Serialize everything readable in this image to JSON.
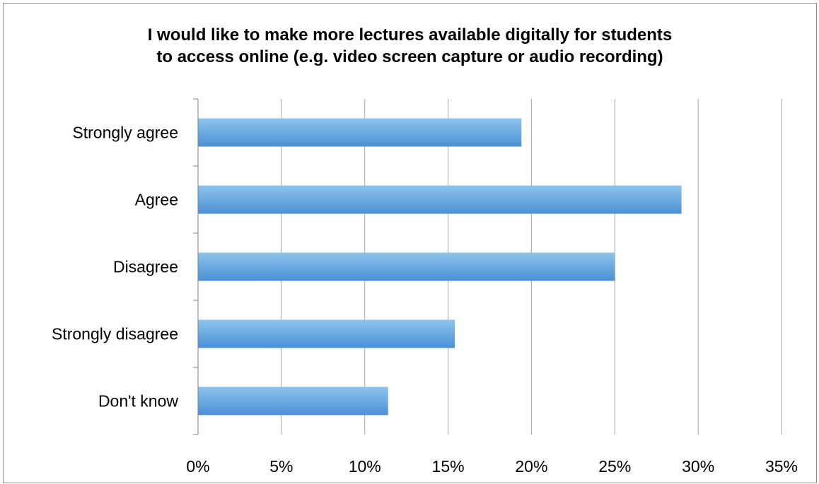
{
  "chart_data": {
    "type": "bar",
    "orientation": "horizontal",
    "title_lines": [
      "I would like to make more lectures available digitally for students",
      "to access online (e.g. video screen capture or audio recording)"
    ],
    "categories": [
      "Strongly agree",
      "Agree",
      "Disagree",
      "Strongly disagree",
      "Don't know"
    ],
    "values": [
      19.4,
      29.0,
      25.0,
      15.4,
      11.4
    ],
    "value_unit": "%",
    "xlim": [
      0,
      35
    ],
    "x_ticks": [
      0,
      5,
      10,
      15,
      20,
      25,
      30,
      35
    ],
    "x_tick_labels": [
      "0%",
      "5%",
      "10%",
      "15%",
      "20%",
      "25%",
      "30%",
      "35%"
    ],
    "grid": "vertical",
    "legend": "none",
    "colors": {
      "bar_top": "#8ec4ec",
      "bar_bottom": "#4a90d6",
      "grid": "#a6a6a6",
      "axis": "#808080"
    }
  }
}
